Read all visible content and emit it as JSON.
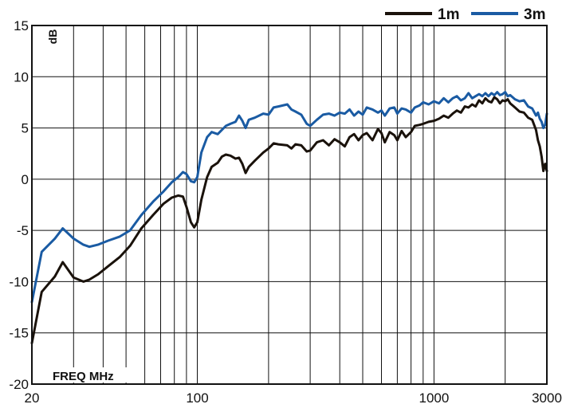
{
  "chart_data": {
    "type": "line",
    "title": "",
    "xlabel": "FREQ MHz",
    "ylabel": "dB",
    "x_scale": "log",
    "xlim": [
      20,
      3000
    ],
    "ylim": [
      -20,
      15
    ],
    "grid": true,
    "legend_position": "top-right",
    "x_tick_labels": [
      {
        "value": 20,
        "label": "20"
      },
      {
        "value": 100,
        "label": "100"
      },
      {
        "value": 1000,
        "label": "1000"
      },
      {
        "value": 3000,
        "label": "3000"
      }
    ],
    "y_ticks": [
      -20,
      -15,
      -10,
      -5,
      0,
      5,
      10,
      15
    ],
    "series": [
      {
        "name": "1m",
        "color": "#1a120b",
        "points": [
          [
            20,
            -16
          ],
          [
            22,
            -11
          ],
          [
            25,
            -9.5
          ],
          [
            27,
            -8.1
          ],
          [
            30,
            -9.6
          ],
          [
            33,
            -10
          ],
          [
            35,
            -9.8
          ],
          [
            38,
            -9.3
          ],
          [
            42,
            -8.5
          ],
          [
            47,
            -7.6
          ],
          [
            52,
            -6.5
          ],
          [
            58,
            -4.8
          ],
          [
            65,
            -3.5
          ],
          [
            72,
            -2.4
          ],
          [
            78,
            -1.8
          ],
          [
            83,
            -1.6
          ],
          [
            87,
            -1.7
          ],
          [
            90,
            -2.7
          ],
          [
            94,
            -4.2
          ],
          [
            97,
            -4.7
          ],
          [
            100,
            -4.2
          ],
          [
            104,
            -2
          ],
          [
            110,
            0.2
          ],
          [
            115,
            1.2
          ],
          [
            122,
            1.6
          ],
          [
            127,
            2.2
          ],
          [
            132,
            2.4
          ],
          [
            138,
            2.3
          ],
          [
            145,
            2
          ],
          [
            150,
            2.1
          ],
          [
            155,
            1.5
          ],
          [
            160,
            0.6
          ],
          [
            165,
            1.2
          ],
          [
            175,
            1.8
          ],
          [
            190,
            2.6
          ],
          [
            200,
            3
          ],
          [
            210,
            3.5
          ],
          [
            220,
            3.4
          ],
          [
            240,
            3.3
          ],
          [
            250,
            3
          ],
          [
            260,
            3.4
          ],
          [
            275,
            3.3
          ],
          [
            290,
            2.7
          ],
          [
            300,
            2.8
          ],
          [
            320,
            3.6
          ],
          [
            340,
            3.8
          ],
          [
            360,
            3.3
          ],
          [
            380,
            3.9
          ],
          [
            400,
            3.6
          ],
          [
            420,
            3.2
          ],
          [
            440,
            4.1
          ],
          [
            460,
            4.4
          ],
          [
            480,
            3.8
          ],
          [
            500,
            4.3
          ],
          [
            520,
            4.5
          ],
          [
            550,
            3.8
          ],
          [
            580,
            4.9
          ],
          [
            600,
            4.5
          ],
          [
            620,
            3.6
          ],
          [
            650,
            4.6
          ],
          [
            680,
            4.3
          ],
          [
            700,
            3.8
          ],
          [
            730,
            4.7
          ],
          [
            760,
            4.1
          ],
          [
            800,
            4.6
          ],
          [
            830,
            5.2
          ],
          [
            870,
            5.3
          ],
          [
            900,
            5.4
          ],
          [
            950,
            5.6
          ],
          [
            1000,
            5.7
          ],
          [
            1050,
            5.9
          ],
          [
            1100,
            6.2
          ],
          [
            1150,
            6
          ],
          [
            1200,
            6.4
          ],
          [
            1250,
            6.7
          ],
          [
            1300,
            6.5
          ],
          [
            1350,
            7.1
          ],
          [
            1400,
            7
          ],
          [
            1450,
            7.3
          ],
          [
            1500,
            7.1
          ],
          [
            1550,
            7.7
          ],
          [
            1600,
            7.4
          ],
          [
            1650,
            7.9
          ],
          [
            1700,
            7.6
          ],
          [
            1750,
            7.5
          ],
          [
            1800,
            8
          ],
          [
            1850,
            7.8
          ],
          [
            1900,
            7.4
          ],
          [
            1950,
            7.7
          ],
          [
            2000,
            7.6
          ],
          [
            2050,
            7.8
          ],
          [
            2100,
            7.4
          ],
          [
            2150,
            7.2
          ],
          [
            2200,
            7
          ],
          [
            2300,
            6.6
          ],
          [
            2400,
            6.5
          ],
          [
            2500,
            6
          ],
          [
            2600,
            5.8
          ],
          [
            2700,
            4.8
          ],
          [
            2750,
            3.8
          ],
          [
            2800,
            3.2
          ],
          [
            2850,
            2.2
          ],
          [
            2900,
            0.8
          ],
          [
            2950,
            1.5
          ],
          [
            3000,
            0.8
          ]
        ]
      },
      {
        "name": "3m",
        "color": "#1a5ba3",
        "points": [
          [
            20,
            -12
          ],
          [
            22,
            -7.1
          ],
          [
            25,
            -5.8
          ],
          [
            27,
            -4.8
          ],
          [
            30,
            -5.8
          ],
          [
            33,
            -6.4
          ],
          [
            35,
            -6.6
          ],
          [
            38,
            -6.4
          ],
          [
            42,
            -6
          ],
          [
            47,
            -5.6
          ],
          [
            52,
            -5
          ],
          [
            58,
            -3.5
          ],
          [
            65,
            -2.2
          ],
          [
            72,
            -1.2
          ],
          [
            78,
            -0.3
          ],
          [
            83,
            0.2
          ],
          [
            87,
            0.7
          ],
          [
            90,
            0.5
          ],
          [
            94,
            -0.2
          ],
          [
            97,
            -0.3
          ],
          [
            100,
            0.2
          ],
          [
            104,
            2.6
          ],
          [
            110,
            4.1
          ],
          [
            115,
            4.6
          ],
          [
            122,
            4.4
          ],
          [
            127,
            4.8
          ],
          [
            132,
            5.2
          ],
          [
            138,
            5.4
          ],
          [
            145,
            5.6
          ],
          [
            150,
            6.2
          ],
          [
            155,
            5.7
          ],
          [
            160,
            5
          ],
          [
            165,
            5.8
          ],
          [
            175,
            6
          ],
          [
            190,
            6.4
          ],
          [
            200,
            6.3
          ],
          [
            210,
            7
          ],
          [
            220,
            7.1
          ],
          [
            240,
            7.3
          ],
          [
            250,
            6.8
          ],
          [
            260,
            6.6
          ],
          [
            275,
            6.3
          ],
          [
            290,
            5.4
          ],
          [
            300,
            5.2
          ],
          [
            320,
            5.8
          ],
          [
            340,
            6.3
          ],
          [
            360,
            6.4
          ],
          [
            380,
            6.2
          ],
          [
            400,
            6.5
          ],
          [
            420,
            6.4
          ],
          [
            440,
            6.8
          ],
          [
            460,
            6.2
          ],
          [
            480,
            6.6
          ],
          [
            500,
            6.3
          ],
          [
            520,
            7
          ],
          [
            550,
            6.8
          ],
          [
            580,
            6.5
          ],
          [
            600,
            6.7
          ],
          [
            620,
            6.2
          ],
          [
            650,
            6.9
          ],
          [
            680,
            7
          ],
          [
            700,
            6.4
          ],
          [
            730,
            6.9
          ],
          [
            760,
            6.8
          ],
          [
            800,
            6.5
          ],
          [
            830,
            7
          ],
          [
            870,
            7.2
          ],
          [
            900,
            7.5
          ],
          [
            950,
            7.3
          ],
          [
            1000,
            7.6
          ],
          [
            1050,
            7.4
          ],
          [
            1100,
            7.9
          ],
          [
            1150,
            7.5
          ],
          [
            1200,
            7.9
          ],
          [
            1250,
            8.1
          ],
          [
            1300,
            7.7
          ],
          [
            1350,
            7.9
          ],
          [
            1400,
            8.4
          ],
          [
            1450,
            7.9
          ],
          [
            1500,
            8.1
          ],
          [
            1550,
            8.3
          ],
          [
            1600,
            8.1
          ],
          [
            1650,
            8.4
          ],
          [
            1700,
            8.1
          ],
          [
            1750,
            8.4
          ],
          [
            1800,
            8.2
          ],
          [
            1850,
            8.5
          ],
          [
            1900,
            8.2
          ],
          [
            1950,
            8.3
          ],
          [
            2000,
            8.5
          ],
          [
            2050,
            8.1
          ],
          [
            2100,
            8.2
          ],
          [
            2150,
            8
          ],
          [
            2200,
            7.8
          ],
          [
            2300,
            7.6
          ],
          [
            2400,
            7.7
          ],
          [
            2500,
            7.1
          ],
          [
            2600,
            6.9
          ],
          [
            2700,
            6.2
          ],
          [
            2750,
            6.5
          ],
          [
            2800,
            5.9
          ],
          [
            2850,
            5.6
          ],
          [
            2900,
            5
          ],
          [
            2950,
            5.3
          ],
          [
            3000,
            6.4
          ]
        ]
      }
    ]
  }
}
